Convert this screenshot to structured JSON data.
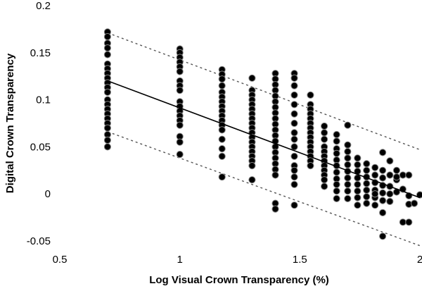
{
  "chart_data": {
    "type": "scatter",
    "title": "",
    "xlabel": "Log Visual Crown Transparency (%)",
    "ylabel": "Digital Crown Transparency",
    "xlim": [
      0.5,
      2.0
    ],
    "ylim": [
      -0.05,
      0.2
    ],
    "x_ticks": [
      "0.5",
      "1",
      "1.5",
      "2"
    ],
    "x_tick_values": [
      0.5,
      1.0,
      1.5,
      2.0
    ],
    "y_ticks": [
      "0.2",
      "0.15",
      "0.1",
      "0.05",
      "0",
      "-0.05"
    ],
    "y_tick_values": [
      0.2,
      0.15,
      0.1,
      0.05,
      0.0,
      -0.05
    ],
    "grid": false,
    "legend": "none",
    "marker_color": "#000000",
    "marker_edge": "#888888",
    "fit_line": {
      "x": [
        0.7,
        2.0
      ],
      "y": [
        0.12,
        -0.004
      ],
      "style": "solid"
    },
    "prediction_upper": {
      "x": [
        0.7,
        2.0
      ],
      "y": [
        0.171,
        0.047
      ],
      "style": "dotted"
    },
    "prediction_lower": {
      "x": [
        0.7,
        2.0
      ],
      "y": [
        0.066,
        -0.055
      ],
      "style": "dotted"
    },
    "series": [
      {
        "values": [
          [
            0.699,
            0.172
          ],
          [
            0.699,
            0.167
          ],
          [
            0.699,
            0.16
          ],
          [
            0.699,
            0.155
          ],
          [
            0.699,
            0.148
          ],
          [
            0.699,
            0.138
          ],
          [
            0.699,
            0.133
          ],
          [
            0.699,
            0.128
          ],
          [
            0.699,
            0.123
          ],
          [
            0.699,
            0.118
          ],
          [
            0.699,
            0.113
          ],
          [
            0.699,
            0.108
          ],
          [
            0.699,
            0.1
          ],
          [
            0.699,
            0.095
          ],
          [
            0.699,
            0.09
          ],
          [
            0.699,
            0.085
          ],
          [
            0.699,
            0.08
          ],
          [
            0.699,
            0.075
          ],
          [
            0.699,
            0.07
          ],
          [
            0.699,
            0.063
          ],
          [
            0.699,
            0.057
          ],
          [
            0.699,
            0.05
          ],
          [
            1.0,
            0.154
          ],
          [
            1.0,
            0.15
          ],
          [
            1.0,
            0.145
          ],
          [
            1.0,
            0.14
          ],
          [
            1.0,
            0.135
          ],
          [
            1.0,
            0.13
          ],
          [
            1.0,
            0.12
          ],
          [
            1.0,
            0.115
          ],
          [
            1.0,
            0.11
          ],
          [
            1.0,
            0.098
          ],
          [
            1.0,
            0.093
          ],
          [
            1.0,
            0.088
          ],
          [
            1.0,
            0.083
          ],
          [
            1.0,
            0.078
          ],
          [
            1.0,
            0.073
          ],
          [
            1.0,
            0.061
          ],
          [
            1.0,
            0.055
          ],
          [
            1.0,
            0.042
          ],
          [
            1.176,
            0.132
          ],
          [
            1.176,
            0.127
          ],
          [
            1.176,
            0.122
          ],
          [
            1.176,
            0.115
          ],
          [
            1.176,
            0.108
          ],
          [
            1.176,
            0.103
          ],
          [
            1.176,
            0.098
          ],
          [
            1.176,
            0.093
          ],
          [
            1.176,
            0.088
          ],
          [
            1.176,
            0.083
          ],
          [
            1.176,
            0.078
          ],
          [
            1.176,
            0.073
          ],
          [
            1.176,
            0.068
          ],
          [
            1.176,
            0.058
          ],
          [
            1.176,
            0.048
          ],
          [
            1.176,
            0.04
          ],
          [
            1.176,
            0.018
          ],
          [
            1.301,
            0.123
          ],
          [
            1.301,
            0.11
          ],
          [
            1.301,
            0.105
          ],
          [
            1.301,
            0.1
          ],
          [
            1.301,
            0.095
          ],
          [
            1.301,
            0.09
          ],
          [
            1.301,
            0.085
          ],
          [
            1.301,
            0.08
          ],
          [
            1.301,
            0.075
          ],
          [
            1.301,
            0.07
          ],
          [
            1.301,
            0.065
          ],
          [
            1.301,
            0.06
          ],
          [
            1.301,
            0.055
          ],
          [
            1.301,
            0.05
          ],
          [
            1.301,
            0.045
          ],
          [
            1.301,
            0.04
          ],
          [
            1.301,
            0.035
          ],
          [
            1.301,
            0.03
          ],
          [
            1.301,
            0.015
          ],
          [
            1.398,
            0.128
          ],
          [
            1.398,
            0.122
          ],
          [
            1.398,
            0.116
          ],
          [
            1.398,
            0.11
          ],
          [
            1.398,
            0.104
          ],
          [
            1.398,
            0.098
          ],
          [
            1.398,
            0.092
          ],
          [
            1.398,
            0.086
          ],
          [
            1.398,
            0.08
          ],
          [
            1.398,
            0.074
          ],
          [
            1.398,
            0.068
          ],
          [
            1.398,
            0.062
          ],
          [
            1.398,
            0.056
          ],
          [
            1.398,
            0.05
          ],
          [
            1.398,
            0.044
          ],
          [
            1.398,
            0.038
          ],
          [
            1.398,
            0.032
          ],
          [
            1.398,
            0.026
          ],
          [
            1.398,
            0.02
          ],
          [
            1.398,
            -0.01
          ],
          [
            1.398,
            -0.016
          ],
          [
            1.477,
            0.128
          ],
          [
            1.477,
            0.123
          ],
          [
            1.477,
            0.115
          ],
          [
            1.477,
            0.105
          ],
          [
            1.477,
            0.095
          ],
          [
            1.477,
            0.085
          ],
          [
            1.477,
            0.075
          ],
          [
            1.477,
            0.065
          ],
          [
            1.477,
            0.058
          ],
          [
            1.477,
            0.05
          ],
          [
            1.477,
            0.04
          ],
          [
            1.477,
            0.03
          ],
          [
            1.477,
            0.025
          ],
          [
            1.477,
            0.018
          ],
          [
            1.477,
            0.01
          ],
          [
            1.477,
            -0.012
          ],
          [
            1.544,
            0.105
          ],
          [
            1.544,
            0.095
          ],
          [
            1.544,
            0.09
          ],
          [
            1.544,
            0.085
          ],
          [
            1.544,
            0.08
          ],
          [
            1.544,
            0.075
          ],
          [
            1.544,
            0.07
          ],
          [
            1.544,
            0.065
          ],
          [
            1.544,
            0.06
          ],
          [
            1.544,
            0.055
          ],
          [
            1.544,
            0.05
          ],
          [
            1.544,
            0.045
          ],
          [
            1.544,
            0.04
          ],
          [
            1.544,
            0.035
          ],
          [
            1.544,
            0.03
          ],
          [
            1.602,
            0.072
          ],
          [
            1.602,
            0.065
          ],
          [
            1.602,
            0.058
          ],
          [
            1.602,
            0.05
          ],
          [
            1.602,
            0.045
          ],
          [
            1.602,
            0.04
          ],
          [
            1.602,
            0.035
          ],
          [
            1.602,
            0.03
          ],
          [
            1.602,
            0.025
          ],
          [
            1.602,
            0.02
          ],
          [
            1.602,
            0.015
          ],
          [
            1.602,
            0.008
          ],
          [
            1.653,
            0.063
          ],
          [
            1.653,
            0.056
          ],
          [
            1.653,
            0.048
          ],
          [
            1.653,
            0.043
          ],
          [
            1.653,
            0.036
          ],
          [
            1.653,
            0.03
          ],
          [
            1.653,
            0.023
          ],
          [
            1.653,
            0.016
          ],
          [
            1.653,
            0.01
          ],
          [
            1.653,
            0.003
          ],
          [
            1.653,
            -0.005
          ],
          [
            1.699,
            0.073
          ],
          [
            1.699,
            0.052
          ],
          [
            1.699,
            0.045
          ],
          [
            1.699,
            0.038
          ],
          [
            1.699,
            0.031
          ],
          [
            1.699,
            0.024
          ],
          [
            1.699,
            0.017
          ],
          [
            1.699,
            0.01
          ],
          [
            1.699,
            0.003
          ],
          [
            1.699,
            -0.005
          ],
          [
            1.74,
            0.038
          ],
          [
            1.74,
            0.031
          ],
          [
            1.74,
            0.024
          ],
          [
            1.74,
            0.017
          ],
          [
            1.74,
            0.01
          ],
          [
            1.74,
            0.003
          ],
          [
            1.74,
            -0.004
          ],
          [
            1.74,
            -0.012
          ],
          [
            1.778,
            0.032
          ],
          [
            1.778,
            0.025
          ],
          [
            1.778,
            0.018
          ],
          [
            1.778,
            0.011
          ],
          [
            1.778,
            0.004
          ],
          [
            1.778,
            -0.003
          ],
          [
            1.778,
            -0.01
          ],
          [
            1.813,
            0.028
          ],
          [
            1.813,
            0.02
          ],
          [
            1.813,
            0.012
          ],
          [
            1.813,
            0.004
          ],
          [
            1.813,
            -0.004
          ],
          [
            1.845,
            0.044
          ],
          [
            1.845,
            0.025
          ],
          [
            1.845,
            0.017
          ],
          [
            1.845,
            0.009
          ],
          [
            1.845,
            0.001
          ],
          [
            1.845,
            -0.007
          ],
          [
            1.875,
            0.035
          ],
          [
            1.875,
            0.02
          ],
          [
            1.875,
            0.008
          ],
          [
            1.875,
            0.0
          ],
          [
            1.875,
            -0.008
          ],
          [
            1.903,
            0.025
          ],
          [
            1.903,
            0.015
          ],
          [
            1.903,
            0.002
          ],
          [
            1.929,
            0.02
          ],
          [
            1.929,
            0.005
          ],
          [
            1.954,
            0.02
          ],
          [
            1.954,
            -0.002
          ],
          [
            1.813,
            0.0
          ],
          [
            1.813,
            -0.012
          ],
          [
            1.845,
            -0.02
          ],
          [
            1.903,
            0.018
          ],
          [
            1.929,
            -0.03
          ],
          [
            1.954,
            -0.03
          ],
          [
            1.954,
            -0.011
          ],
          [
            1.977,
            -0.01
          ],
          [
            1.845,
            -0.045
          ],
          [
            2.0,
            -0.001
          ]
        ]
      }
    ]
  }
}
